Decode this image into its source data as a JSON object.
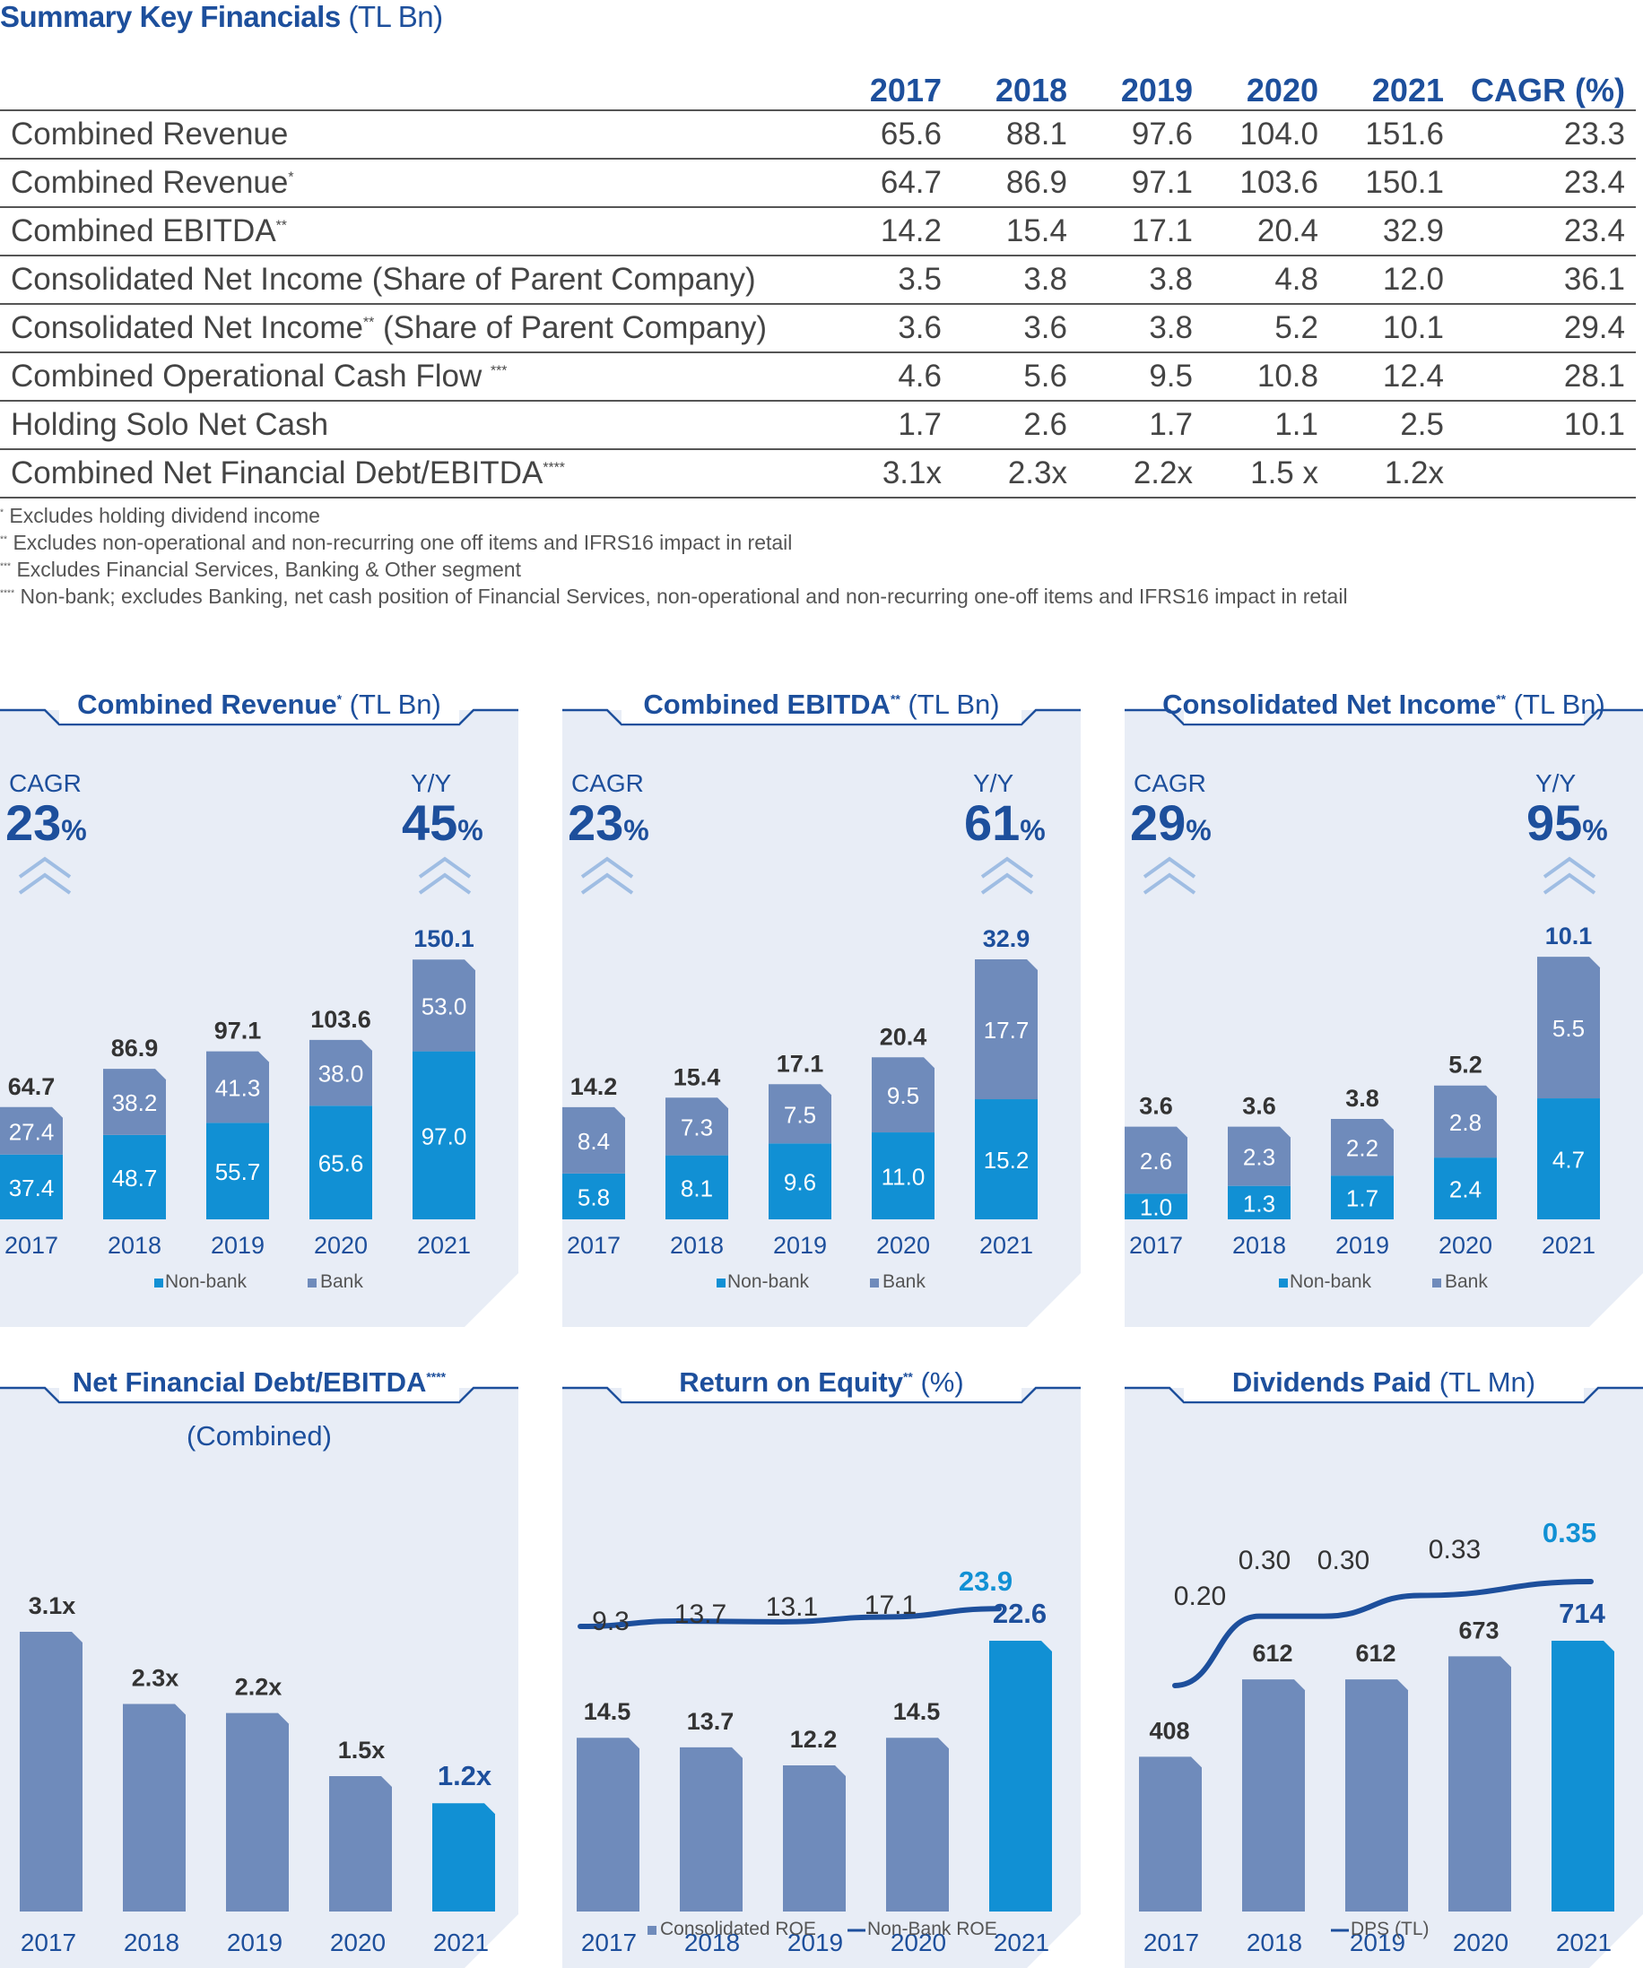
{
  "title": "Summary Key Financials",
  "title_unit": "(TL Bn)",
  "table": {
    "headers": [
      "2017",
      "2018",
      "2019",
      "2020",
      "2021",
      "CAGR (%)"
    ],
    "rows": [
      {
        "label": "Combined Revenue",
        "sup": "",
        "suffix": "",
        "values": [
          "65.6",
          "88.1",
          "97.6",
          "104.0",
          "151.6",
          "23.3"
        ]
      },
      {
        "label": "Combined Revenue",
        "sup": "*",
        "suffix": "",
        "values": [
          "64.7",
          "86.9",
          "97.1",
          "103.6",
          "150.1",
          "23.4"
        ]
      },
      {
        "label": "Combined EBITDA",
        "sup": "**",
        "suffix": "",
        "values": [
          "14.2",
          "15.4",
          "17.1",
          "20.4",
          "32.9",
          "23.4"
        ]
      },
      {
        "label": "Consolidated Net Income (Share of Parent Company)",
        "sup": "",
        "suffix": "",
        "values": [
          "3.5",
          "3.8",
          "3.8",
          "4.8",
          "12.0",
          "36.1"
        ]
      },
      {
        "label": "Consolidated Net Income",
        "sup": "**",
        "suffix": " (Share of Parent Company)",
        "values": [
          "3.6",
          "3.6",
          "3.8",
          "5.2",
          "10.1",
          "29.4"
        ]
      },
      {
        "label": "Combined Operational Cash Flow ",
        "sup": "***",
        "suffix": "",
        "values": [
          "4.6",
          "5.6",
          "9.5",
          "10.8",
          "12.4",
          "28.1"
        ]
      },
      {
        "label": "Holding Solo Net Cash",
        "sup": "",
        "suffix": "",
        "values": [
          "1.7",
          "2.6",
          "1.7",
          "1.1",
          "2.5",
          "10.1"
        ]
      },
      {
        "label": "Combined Net Financial Debt/EBITDA",
        "sup": "****",
        "suffix": "",
        "values": [
          "3.1x",
          "2.3x",
          "2.2x",
          "1.5 x",
          "1.2x",
          ""
        ]
      }
    ]
  },
  "notes": [
    {
      "mark": "*",
      "text": " Excludes holding dividend income"
    },
    {
      "mark": "**",
      "text": " Excludes non-operational and non-recurring one off items and IFRS16 impact in retail"
    },
    {
      "mark": "***",
      "text": " Excludes Financial Services, Banking & Other segment"
    },
    {
      "mark": "****",
      "text": " Non-bank; excludes Banking, net cash position of Financial Services, non-operational and non-recurring one-off items and IFRS16 impact in retail"
    }
  ],
  "colors": {
    "navy": "#1d4f9c",
    "nonbank": "#1190d4",
    "bank": "#6f8bbb",
    "panel_bg": "#e8edf6"
  },
  "kpi_labels": {
    "cagr": "CAGR",
    "yoy": "Y/Y",
    "pct": "%"
  },
  "chart_data": [
    {
      "type": "bar",
      "stacked": true,
      "title": "Combined Revenue",
      "title_sup": "*",
      "unit": "(TL Bn)",
      "cagr": "23",
      "yoy": "45",
      "categories": [
        "2017",
        "2018",
        "2019",
        "2020",
        "2021"
      ],
      "series": [
        {
          "name": "Non-bank",
          "values": [
            37.4,
            48.7,
            55.7,
            65.6,
            97.0
          ],
          "labels": [
            "37.4",
            "48.7",
            "55.7",
            "65.6",
            "97.0"
          ]
        },
        {
          "name": "Bank",
          "values": [
            27.4,
            38.2,
            41.3,
            38.0,
            53.0
          ],
          "labels": [
            "27.4",
            "38.2",
            "41.3",
            "38.0",
            "53.0"
          ]
        }
      ],
      "totals": [
        "64.7",
        "86.9",
        "97.1",
        "103.6",
        "150.1"
      ],
      "ylim": [
        0,
        150.1
      ]
    },
    {
      "type": "bar",
      "stacked": true,
      "title": "Combined EBITDA",
      "title_sup": "**",
      "unit": "(TL Bn)",
      "cagr": "23",
      "yoy": "61",
      "categories": [
        "2017",
        "2018",
        "2019",
        "2020",
        "2021"
      ],
      "series": [
        {
          "name": "Non-bank",
          "values": [
            5.8,
            8.1,
            9.6,
            11.0,
            15.2
          ],
          "labels": [
            "5.8",
            "8.1",
            "9.6",
            "11.0",
            "15.2"
          ]
        },
        {
          "name": "Bank",
          "values": [
            8.4,
            7.3,
            7.5,
            9.5,
            17.7
          ],
          "labels": [
            "8.4",
            "7.3",
            "7.5",
            "9.5",
            "17.7"
          ]
        }
      ],
      "totals": [
        "14.2",
        "15.4",
        "17.1",
        "20.4",
        "32.9"
      ],
      "ylim": [
        0,
        32.9
      ]
    },
    {
      "type": "bar",
      "stacked": true,
      "title": "Consolidated Net Income",
      "title_sup": "**",
      "unit": "(TL Bn)",
      "cagr": "29",
      "yoy": "95",
      "categories": [
        "2017",
        "2018",
        "2019",
        "2020",
        "2021"
      ],
      "series": [
        {
          "name": "Non-bank",
          "values": [
            1.0,
            1.3,
            1.7,
            2.4,
            4.7
          ],
          "labels": [
            "1.0",
            "1.3",
            "1.7",
            "2.4",
            "4.7"
          ]
        },
        {
          "name": "Bank",
          "values": [
            2.6,
            2.3,
            2.2,
            2.8,
            5.5
          ],
          "labels": [
            "2.6",
            "2.3",
            "2.2",
            "2.8",
            "5.5"
          ]
        }
      ],
      "totals": [
        "3.6",
        "3.6",
        "3.8",
        "5.2",
        "10.1"
      ],
      "ylim": [
        0,
        10.1
      ]
    },
    {
      "type": "bar",
      "title": "Net Financial Debt/EBITDA",
      "title_sup": "****",
      "unit": "",
      "subtitle": "(Combined)",
      "categories": [
        "2017",
        "2018",
        "2019",
        "2020",
        "2021"
      ],
      "values": [
        3.1,
        2.3,
        2.2,
        1.5,
        1.2
      ],
      "labels": [
        "3.1x",
        "2.3x",
        "2.2x",
        "1.5x",
        "1.2x"
      ],
      "ylim": [
        0,
        3.1
      ]
    },
    {
      "type": "bar",
      "title": "Return on Equity",
      "title_sup": "**",
      "unit": "(%)",
      "categories": [
        "2017",
        "2018",
        "2019",
        "2020",
        "2021"
      ],
      "series": [
        {
          "name": "Consolidated ROE",
          "type": "bar",
          "values": [
            14.5,
            13.7,
            12.2,
            14.5,
            22.6
          ],
          "labels": [
            "14.5",
            "13.7",
            "12.2",
            "14.5",
            "22.6"
          ]
        },
        {
          "name": "Non-Bank ROE",
          "type": "line",
          "values": [
            9.3,
            13.7,
            13.1,
            17.1,
            23.9
          ],
          "labels": [
            "9.3",
            "13.7",
            "13.1",
            "17.1",
            "23.9"
          ]
        }
      ]
    },
    {
      "type": "bar",
      "title": "Dividends Paid",
      "title_sup": "",
      "unit": "(TL Mn)",
      "categories": [
        "2017",
        "2018",
        "2019",
        "2020",
        "2021"
      ],
      "series": [
        {
          "name": "",
          "type": "bar",
          "values": [
            408,
            612,
            612,
            673,
            714
          ],
          "labels": [
            "408",
            "612",
            "612",
            "673",
            "714"
          ]
        },
        {
          "name": "DPS (TL)",
          "type": "line",
          "values": [
            0.2,
            0.3,
            0.3,
            0.33,
            0.35
          ],
          "labels": [
            "0.20",
            "0.30",
            "0.30",
            "0.33",
            "0.35"
          ]
        }
      ]
    }
  ]
}
